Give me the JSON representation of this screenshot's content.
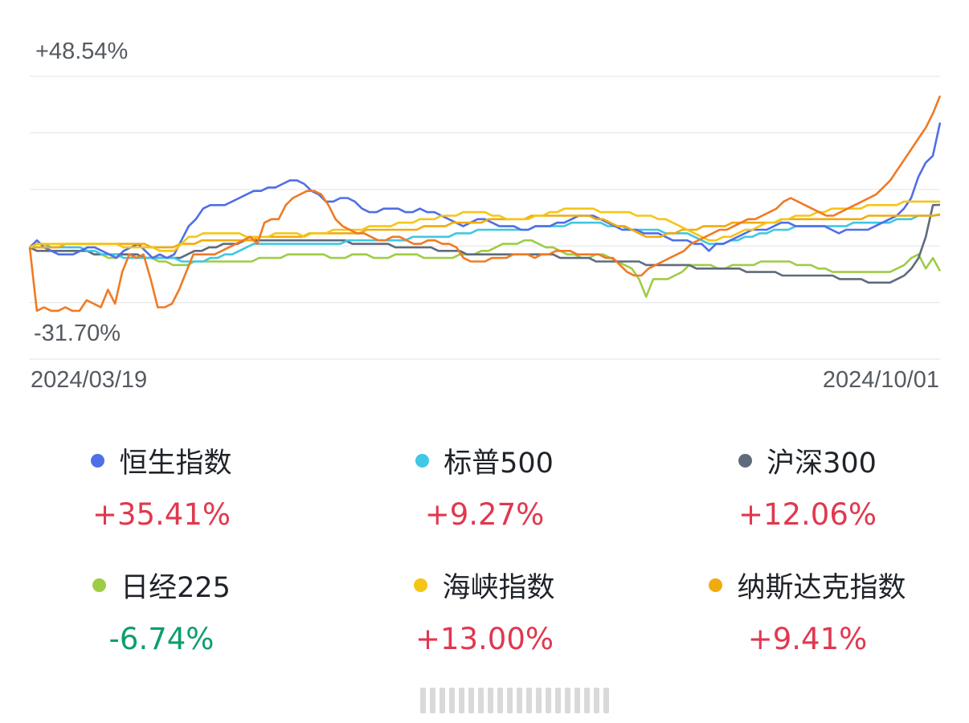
{
  "chart_data": {
    "type": "line",
    "x_range": [
      "2024/03/19",
      "2024/10/01"
    ],
    "y_max_label": "+48.54%",
    "y_min_label": "-31.70%",
    "ylim": [
      -31.7,
      48.54
    ],
    "grid": true,
    "series": [
      {
        "name": "恒生指数",
        "color": "#4f6fe6",
        "value": "+35.41%",
        "values": [
          0,
          2,
          0,
          -1,
          -2,
          -2,
          -2,
          -1,
          0,
          0,
          -1,
          -2,
          -3,
          -1,
          0,
          1,
          -1,
          -3,
          -2,
          -3,
          -2,
          2,
          6,
          8,
          11,
          12,
          12,
          12,
          13,
          14,
          15,
          16,
          16,
          17,
          17,
          18,
          19,
          19,
          18,
          16,
          15,
          13,
          13,
          14,
          14,
          13,
          11,
          10,
          10,
          11,
          11,
          11,
          10,
          10,
          11,
          10,
          10,
          9,
          8,
          7,
          6,
          7,
          8,
          8,
          7,
          6,
          6,
          6,
          5,
          5,
          6,
          6,
          6,
          7,
          7,
          8,
          9,
          9,
          9,
          8,
          7,
          6,
          5,
          5,
          5,
          4,
          4,
          4,
          3,
          2,
          2,
          2,
          1,
          1,
          -1,
          1,
          1,
          2,
          3,
          4,
          5,
          5,
          5,
          6,
          7,
          7,
          6,
          6,
          6,
          6,
          6,
          5,
          4,
          5,
          5,
          5,
          5,
          6,
          7,
          8,
          9,
          11,
          14,
          20,
          24,
          26,
          35.41
        ]
      },
      {
        "name": "标普500",
        "color": "#3fc7e3",
        "value": "+9.27%",
        "values": [
          0,
          1,
          1,
          0,
          0,
          0,
          0,
          0,
          -1,
          -1,
          -2,
          -2,
          -2,
          -3,
          -3,
          -3,
          -3,
          -3,
          -3,
          -3,
          -3,
          -4,
          -4,
          -4,
          -4,
          -3,
          -3,
          -2,
          -2,
          -1,
          0,
          1,
          1,
          1,
          1,
          1,
          1,
          1,
          1,
          1,
          1,
          1,
          1,
          1,
          2,
          2,
          2,
          2,
          2,
          2,
          2,
          2,
          2,
          3,
          3,
          3,
          3,
          3,
          3,
          4,
          4,
          4,
          5,
          5,
          5,
          5,
          5,
          5,
          5,
          5,
          6,
          6,
          6,
          6,
          6,
          7,
          7,
          7,
          7,
          7,
          6,
          6,
          6,
          5,
          5,
          5,
          5,
          5,
          4,
          4,
          4,
          4,
          3,
          2,
          1,
          1,
          1,
          2,
          2,
          3,
          3,
          4,
          4,
          5,
          5,
          5,
          6,
          6,
          6,
          6,
          6,
          6,
          6,
          6,
          7,
          7,
          7,
          7,
          7,
          7,
          8,
          8,
          8,
          9,
          9,
          9,
          9.27
        ]
      },
      {
        "name": "沪深300",
        "color": "#5f6b7c",
        "value": "+12.06%",
        "values": [
          0,
          -1,
          -1,
          -1,
          -1,
          -1,
          -1,
          -1,
          -1,
          -2,
          -2,
          -2,
          -2,
          -2,
          -2,
          -2,
          -3,
          -3,
          -3,
          -3,
          -3,
          -3,
          -2,
          -1,
          -1,
          0,
          0,
          1,
          1,
          1,
          2,
          2,
          2,
          2,
          2,
          2,
          2,
          2,
          2,
          2,
          2,
          2,
          2,
          2,
          2,
          1,
          1,
          1,
          1,
          1,
          1,
          0,
          0,
          0,
          0,
          0,
          0,
          -1,
          -1,
          -1,
          -1,
          -2,
          -2,
          -2,
          -2,
          -2,
          -2,
          -2,
          -2,
          -2,
          -2,
          -2,
          -2,
          -2,
          -3,
          -3,
          -3,
          -3,
          -3,
          -4,
          -4,
          -4,
          -4,
          -4,
          -4,
          -4,
          -5,
          -5,
          -5,
          -5,
          -5,
          -5,
          -5,
          -6,
          -6,
          -6,
          -6,
          -6,
          -6,
          -6,
          -7,
          -7,
          -7,
          -7,
          -7,
          -8,
          -8,
          -8,
          -8,
          -8,
          -8,
          -8,
          -8,
          -9,
          -9,
          -9,
          -9,
          -10,
          -10,
          -10,
          -10,
          -9,
          -8,
          -6,
          -3,
          3,
          12,
          12.06
        ]
      },
      {
        "name": "日经225",
        "color": "#9fcc45",
        "value": "-6.74%",
        "values": [
          0,
          0,
          0,
          -1,
          -1,
          -1,
          -1,
          -1,
          -1,
          -2,
          -2,
          -3,
          -3,
          -2,
          -2,
          -3,
          -3,
          -3,
          -4,
          -4,
          -5,
          -5,
          -5,
          -4,
          -4,
          -4,
          -4,
          -4,
          -4,
          -4,
          -4,
          -4,
          -3,
          -3,
          -3,
          -3,
          -2,
          -2,
          -2,
          -2,
          -2,
          -2,
          -3,
          -3,
          -3,
          -2,
          -2,
          -2,
          -3,
          -3,
          -3,
          -2,
          -2,
          -2,
          -2,
          -3,
          -3,
          -3,
          -3,
          -3,
          -2,
          -2,
          -2,
          -1,
          -1,
          0,
          1,
          1,
          1,
          2,
          2,
          1,
          0,
          0,
          -1,
          -2,
          -2,
          -3,
          -3,
          -2,
          -2,
          -3,
          -4,
          -5,
          -6,
          -9,
          -14,
          -9,
          -9,
          -9,
          -8,
          -7,
          -5,
          -5,
          -5,
          -5,
          -6,
          -6,
          -5,
          -5,
          -5,
          -5,
          -4,
          -4,
          -4,
          -4,
          -4,
          -5,
          -5,
          -5,
          -6,
          -6,
          -7,
          -7,
          -7,
          -7,
          -7,
          -7,
          -7,
          -7,
          -7,
          -6,
          -5,
          -3,
          -2,
          -6,
          -3,
          -6.74
        ]
      },
      {
        "name": "海峡指数",
        "color": "#f5c518",
        "value": "+13.00%",
        "values": [
          0,
          1,
          1,
          1,
          1,
          1,
          1,
          1,
          1,
          1,
          1,
          1,
          1,
          0,
          0,
          0,
          0,
          0,
          -1,
          -1,
          -1,
          1,
          3,
          3,
          4,
          4,
          4,
          4,
          4,
          4,
          3,
          3,
          3,
          3,
          4,
          4,
          4,
          4,
          3,
          4,
          4,
          4,
          5,
          5,
          5,
          5,
          5,
          6,
          6,
          6,
          6,
          7,
          7,
          7,
          8,
          8,
          8,
          9,
          9,
          9,
          10,
          10,
          10,
          10,
          9,
          9,
          8,
          8,
          8,
          8,
          9,
          9,
          10,
          10,
          11,
          11,
          11,
          11,
          11,
          10,
          10,
          10,
          10,
          10,
          9,
          9,
          9,
          8,
          8,
          7,
          6,
          5,
          4,
          3,
          2,
          2,
          3,
          3,
          4,
          5,
          5,
          6,
          7,
          7,
          8,
          8,
          9,
          9,
          9,
          10,
          10,
          11,
          11,
          11,
          11,
          11,
          12,
          12,
          12,
          12,
          12,
          13,
          13,
          13,
          13,
          13,
          13.0
        ]
      },
      {
        "name": "纳斯达克指数",
        "color": "#f0ab0f",
        "value": "+9.41%",
        "values": [
          0,
          0,
          0,
          0,
          0,
          1,
          1,
          1,
          1,
          1,
          1,
          1,
          1,
          1,
          1,
          1,
          1,
          0,
          0,
          0,
          0,
          1,
          1,
          1,
          2,
          2,
          2,
          2,
          2,
          2,
          2,
          2,
          3,
          3,
          3,
          3,
          3,
          3,
          3,
          4,
          4,
          4,
          4,
          4,
          4,
          4,
          4,
          5,
          5,
          5,
          5,
          5,
          5,
          5,
          5,
          6,
          6,
          6,
          6,
          7,
          7,
          7,
          7,
          7,
          8,
          8,
          8,
          8,
          8,
          8,
          9,
          9,
          9,
          9,
          9,
          9,
          9,
          9,
          9,
          8,
          8,
          7,
          6,
          6,
          5,
          4,
          3,
          3,
          3,
          4,
          4,
          5,
          5,
          5,
          6,
          6,
          6,
          6,
          7,
          7,
          7,
          7,
          7,
          7,
          7,
          8,
          8,
          8,
          8,
          8,
          8,
          8,
          8,
          8,
          8,
          8,
          8,
          9,
          9,
          9,
          9,
          9,
          9,
          9,
          9,
          9,
          9,
          9.41
        ]
      },
      {
        "name": "",
        "color": "#f07a24",
        "value": "",
        "values": [
          0,
          -18,
          -17,
          -18,
          -18,
          -17,
          -18,
          -18,
          -15,
          -16,
          -17,
          -12,
          -16,
          -7,
          -2,
          -3,
          -2,
          -9,
          -17,
          -17,
          -16,
          -12,
          -7,
          -2,
          -2,
          -2,
          -2,
          -1,
          0,
          1,
          2,
          3,
          1,
          7,
          8,
          8,
          12,
          14,
          15,
          16,
          16,
          15,
          12,
          8,
          6,
          5,
          4,
          4,
          3,
          2,
          2,
          3,
          3,
          2,
          1,
          1,
          2,
          2,
          1,
          1,
          0,
          -3,
          -4,
          -4,
          -4,
          -3,
          -3,
          -3,
          -2,
          -2,
          -2,
          -3,
          -2,
          -2,
          -1,
          -1,
          -1,
          -2,
          -2,
          -2,
          -2,
          -3,
          -3,
          -5,
          -7,
          -8,
          -8,
          -6,
          -5,
          -4,
          -3,
          -2,
          -1,
          1,
          2,
          3,
          4,
          5,
          5,
          6,
          7,
          8,
          8,
          9,
          10,
          11,
          13,
          14,
          13,
          12,
          11,
          10,
          9,
          9,
          10,
          11,
          12,
          13,
          14,
          15,
          17,
          19,
          22,
          25,
          28,
          31,
          34,
          38,
          43
        ]
      }
    ]
  },
  "axis": {
    "start": "2024/03/19",
    "end": "2024/10/01",
    "max": "+48.54%",
    "min": "-31.70%"
  },
  "legend": [
    {
      "name": "恒生指数",
      "value": "+35.41%",
      "color": "#4f6fe6",
      "sign": "pos"
    },
    {
      "name": "标普500",
      "value": "+9.27%",
      "color": "#3fc7e3",
      "sign": "pos"
    },
    {
      "name": "沪深300",
      "value": "+12.06%",
      "color": "#5f6b7c",
      "sign": "pos"
    },
    {
      "name": "日经225",
      "value": "-6.74%",
      "color": "#9fcc45",
      "sign": "neg"
    },
    {
      "name": "海峡指数",
      "value": "+13.00%",
      "color": "#f5c518",
      "sign": "pos"
    },
    {
      "name": "纳斯达克指数",
      "value": "+9.41%",
      "color": "#f0ab0f",
      "sign": "pos"
    }
  ]
}
